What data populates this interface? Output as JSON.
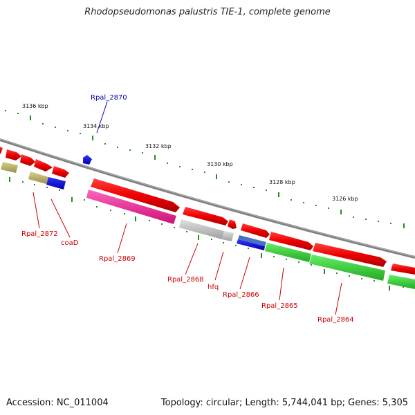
{
  "title": "Rhodopseudomonas palustris TIE-1, complete genome",
  "footer": {
    "accession": "Accession: NC_011004",
    "topology": "Topology: circular; Length: 5,744,041 bp; Genes: 5,305"
  },
  "scale": {
    "labels": [
      "3136 kbp",
      "3134 kbp",
      "3132 kbp",
      "3130 kbp",
      "3128 kbp",
      "3126 kbp"
    ]
  },
  "genes": [
    {
      "name": "Rpal_2870",
      "color": "#0000aa"
    },
    {
      "name": "Rpal_2872",
      "color": "#cc0000"
    },
    {
      "name": "coaD",
      "color": "#cc0000"
    },
    {
      "name": "Rpal_2869",
      "color": "#cc0000"
    },
    {
      "name": "Rpal_2868",
      "color": "#cc0000"
    },
    {
      "name": "hfq",
      "color": "#cc0000"
    },
    {
      "name": "Rpal_2866",
      "color": "#cc0000"
    },
    {
      "name": "Rpal_2865",
      "color": "#cc0000"
    },
    {
      "name": "Rpal_2864",
      "color": "#cc0000"
    }
  ],
  "colors": {
    "forward_cds": "#ff0000",
    "reverse_cds_magenta": "#ff1493",
    "reverse_cds_gray": "#c0c0c0",
    "reverse_cds_green": "#33cc33",
    "reverse_cds_blue": "#0000ff",
    "reverse_cds_khaki": "#bdb76b",
    "backbone": "#808080",
    "ticks": "#228b22"
  }
}
